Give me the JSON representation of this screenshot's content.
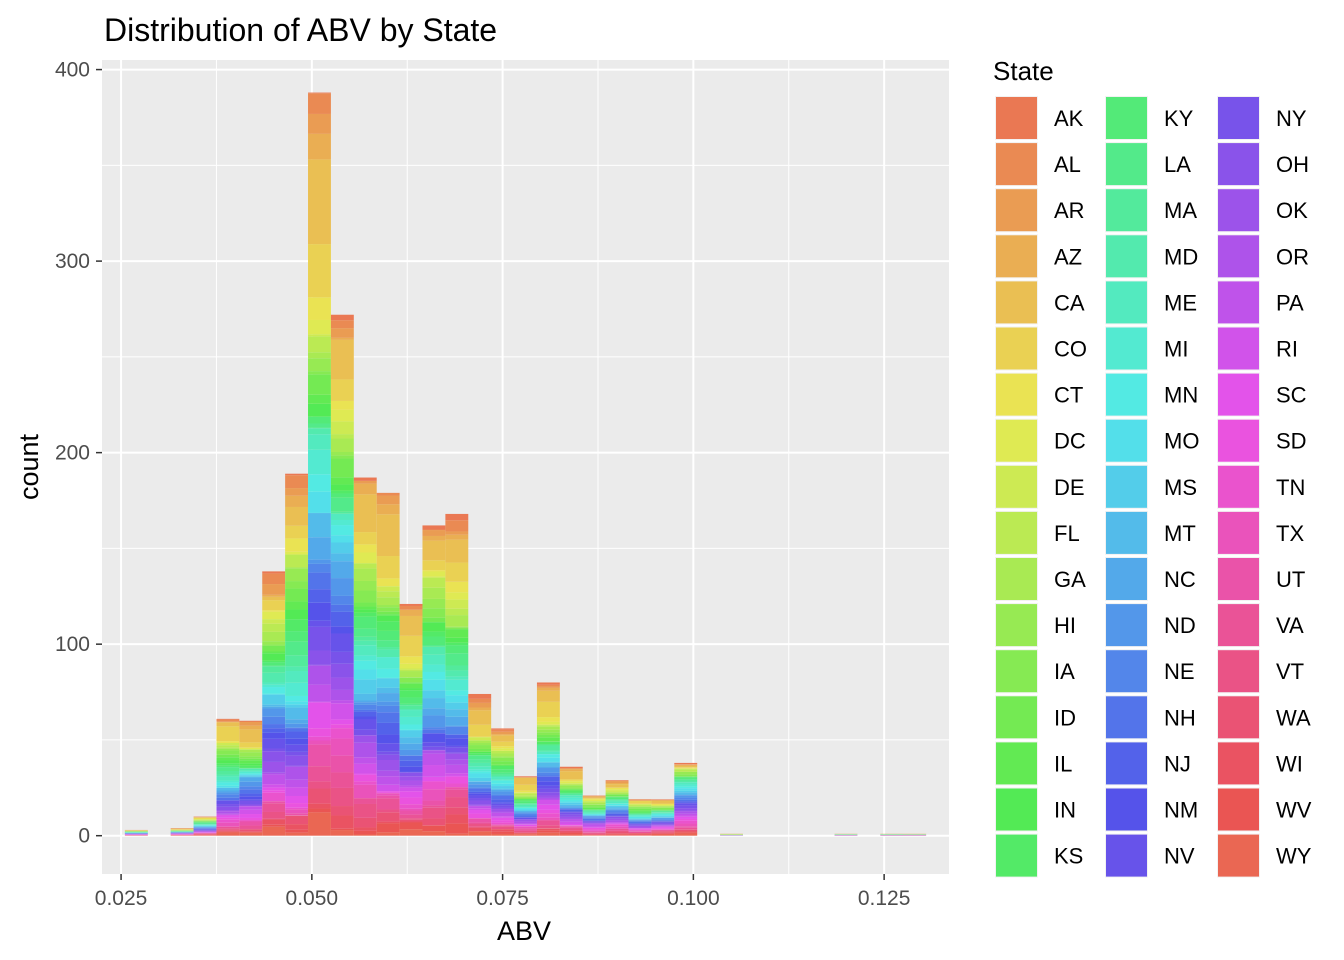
{
  "chart_data": {
    "type": "bar",
    "stacked": true,
    "title": "Distribution of ABV by State",
    "xlabel": "ABV",
    "ylabel": "count",
    "xlim": [
      0.0225,
      0.1335
    ],
    "ylim": [
      -20,
      405
    ],
    "x_ticks": [
      0.025,
      0.05,
      0.075,
      0.1,
      0.125
    ],
    "x_tick_labels": [
      "0.025",
      "0.050",
      "0.075",
      "0.100",
      "0.125"
    ],
    "y_ticks": [
      0,
      100,
      200,
      300,
      400
    ],
    "y_tick_labels": [
      "0",
      "100",
      "200",
      "300",
      "400"
    ],
    "grid": true,
    "background": "#ebebeb",
    "legend": {
      "title": "State",
      "placement": "right",
      "columns": 3,
      "entries": [
        "AK",
        "AL",
        "AR",
        "AZ",
        "CA",
        "CO",
        "CT",
        "DC",
        "DE",
        "FL",
        "GA",
        "HI",
        "IA",
        "ID",
        "IL",
        "IN",
        "KS",
        "KY",
        "LA",
        "MA",
        "MD",
        "ME",
        "MI",
        "MN",
        "MO",
        "MS",
        "MT",
        "NC",
        "ND",
        "NE",
        "NH",
        "NJ",
        "NM",
        "NV",
        "NY",
        "OH",
        "OK",
        "OR",
        "PA",
        "RI",
        "SC",
        "SD",
        "TN",
        "TX",
        "UT",
        "VA",
        "VT",
        "WA",
        "WI",
        "WV",
        "WY"
      ]
    },
    "bin_width": 0.003,
    "bins": [
      {
        "x": 0.027,
        "total": 3
      },
      {
        "x": 0.033,
        "total": 4
      },
      {
        "x": 0.036,
        "total": 10
      },
      {
        "x": 0.039,
        "total": 61
      },
      {
        "x": 0.042,
        "total": 60
      },
      {
        "x": 0.045,
        "total": 138
      },
      {
        "x": 0.048,
        "total": 189
      },
      {
        "x": 0.051,
        "total": 388
      },
      {
        "x": 0.054,
        "total": 272
      },
      {
        "x": 0.057,
        "total": 187
      },
      {
        "x": 0.06,
        "total": 179
      },
      {
        "x": 0.063,
        "total": 121
      },
      {
        "x": 0.066,
        "total": 162
      },
      {
        "x": 0.069,
        "total": 168
      },
      {
        "x": 0.072,
        "total": 74
      },
      {
        "x": 0.075,
        "total": 56
      },
      {
        "x": 0.078,
        "total": 31
      },
      {
        "x": 0.081,
        "total": 80
      },
      {
        "x": 0.084,
        "total": 36
      },
      {
        "x": 0.087,
        "total": 21
      },
      {
        "x": 0.09,
        "total": 29
      },
      {
        "x": 0.093,
        "total": 19
      },
      {
        "x": 0.096,
        "total": 19
      },
      {
        "x": 0.099,
        "total": 38
      },
      {
        "x": 0.105,
        "total": 1
      },
      {
        "x": 0.12,
        "total": 1
      },
      {
        "x": 0.126,
        "total": 1
      },
      {
        "x": 0.129,
        "total": 1
      }
    ]
  }
}
